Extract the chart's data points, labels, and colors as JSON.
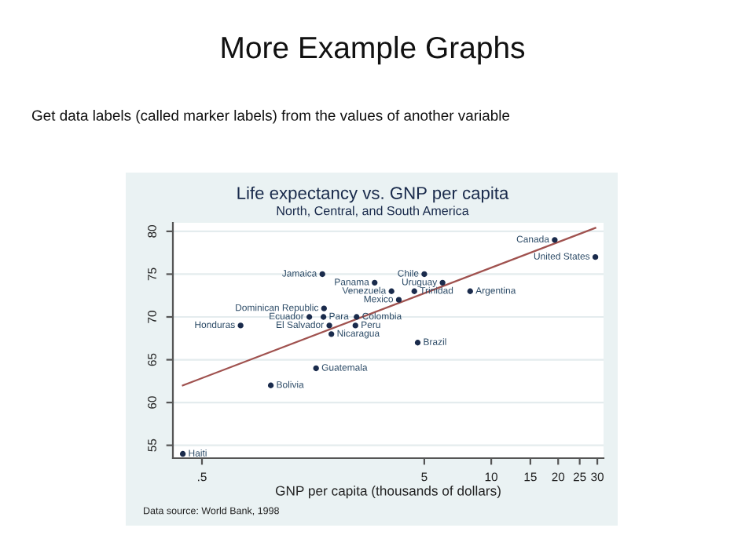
{
  "chart_data": {
    "type": "scatter",
    "title": "Life expectancy vs. GNP per capita",
    "subtitle": "North, Central, and South America",
    "xlabel": "GNP per capita (thousands of dollars)",
    "log": "x",
    "xlim": [
      0.37,
      32
    ],
    "ylim": [
      53.5,
      81
    ],
    "xticks": [
      {
        "value": 0.5,
        "label": ".5"
      },
      5,
      10,
      15,
      20,
      25,
      30
    ],
    "yticks": [
      55,
      60,
      65,
      70,
      75,
      80
    ],
    "grid": "y",
    "legend": false,
    "series": [
      {
        "marker": "circle",
        "color": "#1a2b4c",
        "x": [
          19.3,
          29.4,
          1.74,
          2.99,
          5.0,
          6.04,
          3.56,
          4.51,
          8.04,
          3.84,
          1.77,
          1.52,
          1.76,
          2.48,
          0.746,
          1.87,
          2.45,
          1.91,
          4.67,
          1.63,
          1.02,
          0.41
        ],
        "values": [
          79,
          77,
          75,
          74,
          75,
          74,
          73,
          73,
          73,
          72,
          71,
          70,
          70,
          70,
          69,
          69,
          69,
          68,
          67,
          64,
          62,
          54
        ]
      },
      {
        "type": "line",
        "color": "#a0524f",
        "x": [
          0.41,
          29.4
        ],
        "values": [
          62,
          80.4
        ]
      }
    ],
    "annotations": [
      {
        "text": "Canada",
        "x": 19.3,
        "y": 79
      },
      {
        "text": "United States",
        "x": 29.4,
        "y": 77
      },
      {
        "text": "Jamaica",
        "x": 1.74,
        "y": 75
      },
      {
        "text": "Panama",
        "x": 2.99,
        "y": 74
      },
      {
        "text": "Chile",
        "x": 5.0,
        "y": 75
      },
      {
        "text": "Uruguay",
        "x": 6.04,
        "y": 74
      },
      {
        "text": "Venezuela",
        "x": 3.56,
        "y": 73
      },
      {
        "text": "Trinidad",
        "x": 4.51,
        "y": 73
      },
      {
        "text": "Argentina",
        "x": 8.04,
        "y": 73
      },
      {
        "text": "Mexico",
        "x": 3.84,
        "y": 72
      },
      {
        "text": "Dominican Republic",
        "x": 1.77,
        "y": 71
      },
      {
        "text": "Ecuador",
        "x": 1.52,
        "y": 70
      },
      {
        "text": "Para",
        "x": 1.76,
        "y": 70
      },
      {
        "text": "Colombia",
        "x": 2.48,
        "y": 70
      },
      {
        "text": "Honduras",
        "x": 0.746,
        "y": 69
      },
      {
        "text": "El Salvador",
        "x": 1.87,
        "y": 69
      },
      {
        "text": "Peru",
        "x": 2.45,
        "y": 69
      },
      {
        "text": "Nicaragua",
        "x": 1.91,
        "y": 68
      },
      {
        "text": "Brazil",
        "x": 4.67,
        "y": 67
      },
      {
        "text": "Guatemala",
        "x": 1.63,
        "y": 64
      },
      {
        "text": "Bolivia",
        "x": 1.02,
        "y": 62
      },
      {
        "text": "Haiti",
        "x": 0.41,
        "y": 54
      },
      "More Example Graphs",
      "Get data labels (called marker labels) from the values of another variable",
      "Data source: World Bank, 1998"
    ]
  }
}
